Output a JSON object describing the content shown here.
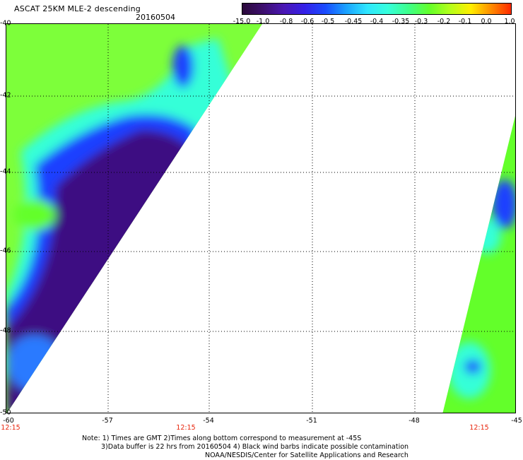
{
  "header": {
    "title": "ASCAT 25KM MLE-2 descending",
    "date": "20160504"
  },
  "colorbar": {
    "labels": [
      "-15.0",
      "-1.0",
      "-0.8",
      "-0.6",
      "-0.5",
      "-0.45",
      "-0.4",
      "-0.35",
      "-0.3",
      "-0.2",
      "-0.1",
      "0.0",
      "1.0"
    ],
    "colors": [
      "#2b0a3a",
      "#3d0f6e",
      "#4a17b4",
      "#3420e8",
      "#1a4cff",
      "#1aa2ff",
      "#2fe6ff",
      "#36ffdc",
      "#3dff8a",
      "#63ff2a",
      "#b4ff1a",
      "#ffee00",
      "#ff8a00",
      "#ff2200"
    ]
  },
  "map": {
    "lat_labels": [
      "-40",
      "-42",
      "-44",
      "-46",
      "-48",
      "-50"
    ],
    "lon_labels": [
      "-60",
      "-57",
      "-54",
      "-51",
      "-48",
      "-45"
    ],
    "time_labels": [
      "12:15",
      "12:15",
      "12:15"
    ]
  },
  "notes": {
    "line1": "Note: 1) Times are GMT 2)Times along bottom correspond to measurement at -45S",
    "line2": "3)Data buffer is 22 hrs from 20160504 4) Black wind barbs indicate possible contamination",
    "line3": "NOAA/NESDIS/Center for Satellite Applications and Research"
  }
}
